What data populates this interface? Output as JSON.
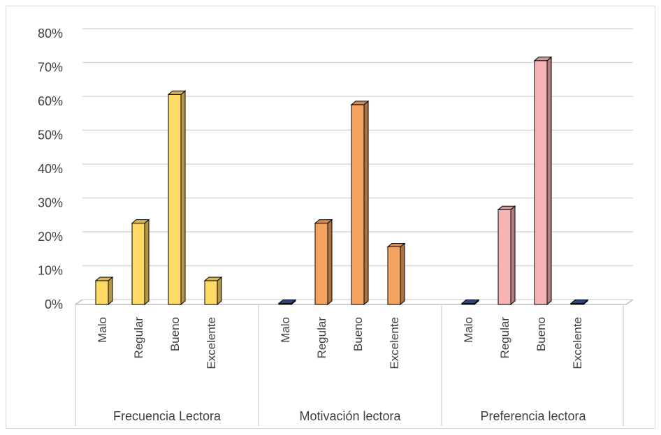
{
  "chart_data": {
    "type": "bar",
    "title": "",
    "xlabel": "",
    "ylabel": "",
    "ylim": [
      0,
      0.8
    ],
    "y_ticks": [
      "0%",
      "10%",
      "20%",
      "30%",
      "40%",
      "50%",
      "60%",
      "70%",
      "80%"
    ],
    "grid": true,
    "legend": "none",
    "style": "3d-column",
    "groups": [
      {
        "name": "Frecuencia Lectora",
        "color": "#ffd966",
        "categories": [
          "Malo",
          "Regular",
          "Bueno",
          "Excelente"
        ],
        "values": [
          0.07,
          0.24,
          0.62,
          0.07
        ]
      },
      {
        "name": "Motivación lectora",
        "color": "#f4a460",
        "categories": [
          "Malo",
          "Regular",
          "Bueno",
          "Excelente"
        ],
        "values": [
          0.0,
          0.24,
          0.59,
          0.17
        ]
      },
      {
        "name": "Preferencia lectora",
        "color": "#f8b4b4",
        "categories": [
          "Malo",
          "Regular",
          "Bueno",
          "Excelente"
        ],
        "values": [
          0.0,
          0.28,
          0.72,
          0.0
        ]
      }
    ],
    "zero_value_color": "#2f5597"
  }
}
